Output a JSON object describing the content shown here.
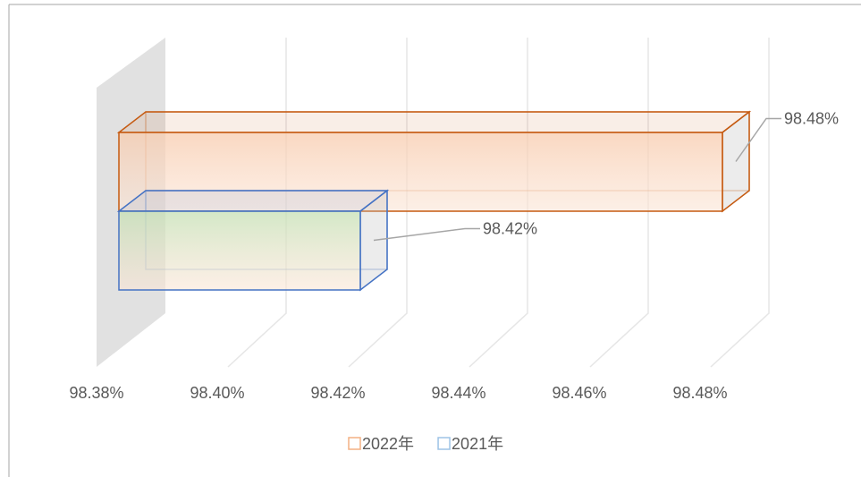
{
  "chart_data": {
    "type": "bar3d",
    "series": [
      {
        "name": "2022年",
        "color": "#c55a11",
        "values": [
          98.48
        ],
        "value_labels": [
          "98.48%"
        ]
      },
      {
        "name": "2021年",
        "color": "#4472c4",
        "values": [
          98.42
        ],
        "value_labels": [
          "98.42%"
        ]
      }
    ],
    "xlim": [
      98.38,
      98.48
    ],
    "xticks": [
      {
        "value": 98.38,
        "label": "98.38%"
      },
      {
        "value": 98.4,
        "label": "98.40%"
      },
      {
        "value": 98.42,
        "label": "98.42%"
      },
      {
        "value": 98.44,
        "label": "98.44%"
      },
      {
        "value": 98.46,
        "label": "98.46%"
      },
      {
        "value": 98.48,
        "label": "98.48%"
      }
    ],
    "grid": true,
    "legend": "bottom"
  }
}
